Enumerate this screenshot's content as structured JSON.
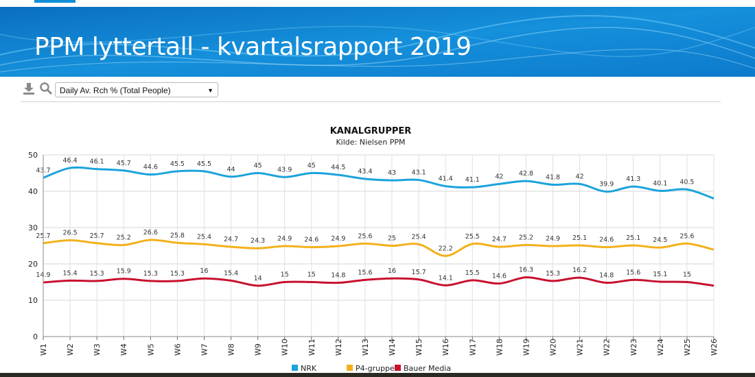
{
  "header": {
    "title": "PPM lyttertall - kvartalsrapport 2019"
  },
  "toolbar": {
    "download_icon": "download-icon",
    "search_icon": "magnifier-icon",
    "metric_select_value": "Daily Av. Rch % (Total People)",
    "metric_select_arrow": "▼"
  },
  "chart_data": {
    "type": "line",
    "title": "KANALGRUPPER",
    "subtitle": "Kilde: Nielsen PPM",
    "xlabel": "",
    "ylabel": "",
    "ylim": [
      0,
      50
    ],
    "yticks": [
      0,
      10,
      20,
      30,
      40,
      50
    ],
    "grid": true,
    "legend_position": "bottom-center",
    "categories": [
      "W1",
      "W2",
      "W3",
      "W4",
      "W5",
      "W6",
      "W7",
      "W8",
      "W9",
      "W10",
      "W11",
      "W12",
      "W13",
      "W14",
      "W15",
      "W16",
      "W17",
      "W18",
      "W19",
      "W20",
      "W21",
      "W22",
      "W23",
      "W24",
      "W25",
      "W26"
    ],
    "series": [
      {
        "name": "NRK",
        "color": "#1ba3dc",
        "values": [
          43.7,
          46.4,
          46.1,
          45.7,
          44.6,
          45.5,
          45.5,
          44,
          45,
          43.9,
          45,
          44.5,
          43.4,
          43,
          43.1,
          41.4,
          41.1,
          42,
          42.8,
          41.8,
          42,
          39.9,
          41.3,
          40.1,
          40.5,
          38
        ]
      },
      {
        "name": "P4-gruppen",
        "color": "#f2b11b",
        "values": [
          25.7,
          26.5,
          25.7,
          25.2,
          26.6,
          25.8,
          25.4,
          24.7,
          24.3,
          24.9,
          24.6,
          24.9,
          25.6,
          25,
          25.4,
          22.2,
          25.5,
          24.7,
          25.2,
          24.9,
          25.1,
          24.6,
          25.1,
          24.5,
          25.6,
          23.9
        ]
      },
      {
        "name": "Bauer Media",
        "color": "#c8102e",
        "values": [
          14.9,
          15.4,
          15.3,
          15.9,
          15.3,
          15.3,
          16,
          15.4,
          14,
          15,
          15,
          14.8,
          15.6,
          16,
          15.7,
          14.1,
          15.5,
          14.6,
          16.3,
          15.3,
          16.2,
          14.8,
          15.6,
          15.1,
          15,
          14
        ]
      }
    ],
    "labels_shown_count": 25
  }
}
